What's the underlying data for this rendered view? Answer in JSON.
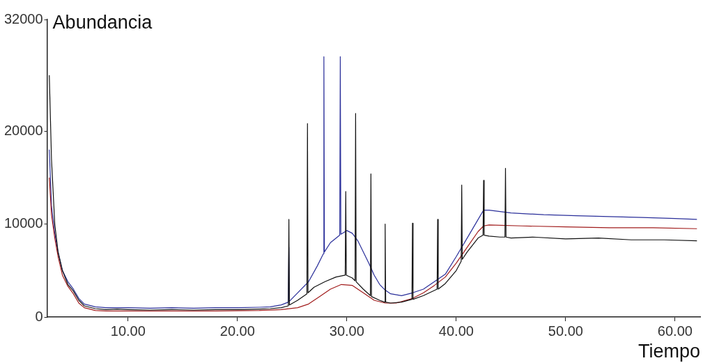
{
  "chart_data": {
    "type": "line",
    "xlabel": "Tiempo",
    "ylabel": "Abundancia",
    "xlim": [
      2.6,
      62.3
    ],
    "ylim": [
      0,
      32000
    ],
    "xticks": [
      {
        "value": 10,
        "label": "10.00"
      },
      {
        "value": 20,
        "label": "20.00"
      },
      {
        "value": 30,
        "label": "30.00"
      },
      {
        "value": 40,
        "label": "40.00"
      },
      {
        "value": 50,
        "label": "50.00"
      },
      {
        "value": 60,
        "label": "60.00"
      }
    ],
    "yticks": [
      0,
      10000,
      20000,
      32000
    ],
    "grid": false,
    "legend": false,
    "marker": "none",
    "line_style": "solid",
    "series": [
      {
        "color": "#2a2f9a",
        "x": [
          2.8,
          3.0,
          3.3,
          3.6,
          4.0,
          4.5,
          5.0,
          5.5,
          6,
          7,
          8,
          10,
          12,
          14,
          16,
          18,
          20,
          22,
          23,
          24,
          24.65,
          24.7,
          24.75,
          25.5,
          26.5,
          27.3,
          27.85,
          27.9,
          27.95,
          28.5,
          29.35,
          29.4,
          29.45,
          30,
          30.5,
          31,
          31.5,
          32,
          32.5,
          33,
          33.5,
          34,
          35,
          36,
          37,
          38,
          39,
          40,
          41,
          42,
          42.5,
          43,
          45,
          48,
          51,
          54,
          57,
          60,
          62
        ],
        "values": [
          18000,
          12000,
          9000,
          7000,
          5000,
          3800,
          3000,
          2000,
          1400,
          1100,
          1000,
          1000,
          950,
          1000,
          950,
          1000,
          1000,
          1050,
          1100,
          1300,
          1600,
          7500,
          1700,
          2600,
          3800,
          5500,
          6800,
          28000,
          7000,
          8000,
          8800,
          28000,
          8900,
          9300,
          9000,
          8200,
          7000,
          5800,
          4500,
          3500,
          2900,
          2500,
          2300,
          2600,
          3000,
          3800,
          4600,
          6500,
          8500,
          10500,
          11500,
          11500,
          11200,
          11000,
          10900,
          10800,
          10700,
          10600,
          10500
        ]
      },
      {
        "color": "#a11c1c",
        "x": [
          2.8,
          3.0,
          3.3,
          3.6,
          4,
          4.5,
          5,
          5.5,
          6,
          7,
          8,
          10,
          14,
          18,
          22,
          24,
          25.5,
          26.5,
          27.5,
          28.5,
          29.5,
          30.5,
          31.5,
          32.5,
          33.5,
          34.5,
          36,
          37,
          38,
          39,
          40,
          41,
          42,
          42.5,
          43,
          46,
          50,
          54,
          58,
          62
        ],
        "values": [
          15000,
          11000,
          8500,
          6500,
          4500,
          3300,
          2500,
          1500,
          1000,
          700,
          650,
          650,
          650,
          650,
          700,
          800,
          1000,
          1400,
          2200,
          3000,
          3500,
          3400,
          2600,
          1800,
          1500,
          1500,
          2000,
          2600,
          3400,
          4300,
          5800,
          7500,
          9200,
          9800,
          9900,
          9800,
          9700,
          9600,
          9600,
          9500
        ]
      },
      {
        "color": "#111111",
        "x": [
          2.8,
          3.0,
          3.3,
          3.6,
          4.0,
          4.5,
          5.0,
          5.5,
          6.0,
          7,
          8,
          9,
          10,
          12,
          14,
          16,
          18,
          20,
          22,
          23,
          24,
          24.65,
          24.7,
          24.75,
          25.5,
          26.35,
          26.4,
          26.45,
          27,
          28,
          29,
          29.85,
          29.9,
          29.95,
          30.5,
          30.75,
          30.8,
          30.85,
          31.5,
          32.15,
          32.2,
          32.25,
          33,
          33.45,
          33.5,
          33.55,
          34,
          35,
          35.95,
          36,
          36.05,
          37,
          38.25,
          38.3,
          38.35,
          39,
          40,
          40.45,
          40.5,
          40.55,
          41,
          42,
          42.45,
          42.5,
          42.55,
          43,
          44,
          44.45,
          44.5,
          44.55,
          45,
          47,
          50,
          53,
          56,
          59,
          62
        ],
        "values": [
          26000,
          17000,
          10000,
          7000,
          5000,
          3500,
          2800,
          1800,
          1200,
          900,
          800,
          850,
          800,
          750,
          800,
          750,
          800,
          800,
          850,
          900,
          1000,
          1200,
          10500,
          1300,
          1800,
          2500,
          20800,
          2600,
          3200,
          3800,
          4300,
          4500,
          13500,
          4500,
          4200,
          3900,
          21900,
          3800,
          3000,
          2300,
          15400,
          2200,
          1800,
          1600,
          10000,
          1600,
          1500,
          1600,
          1900,
          10100,
          1900,
          2300,
          3000,
          10500,
          3000,
          3600,
          5000,
          6000,
          14200,
          6200,
          7000,
          8500,
          8800,
          14700,
          8800,
          8700,
          8600,
          8600,
          16000,
          8600,
          8500,
          8600,
          8400,
          8500,
          8300,
          8300,
          8200
        ]
      }
    ]
  }
}
